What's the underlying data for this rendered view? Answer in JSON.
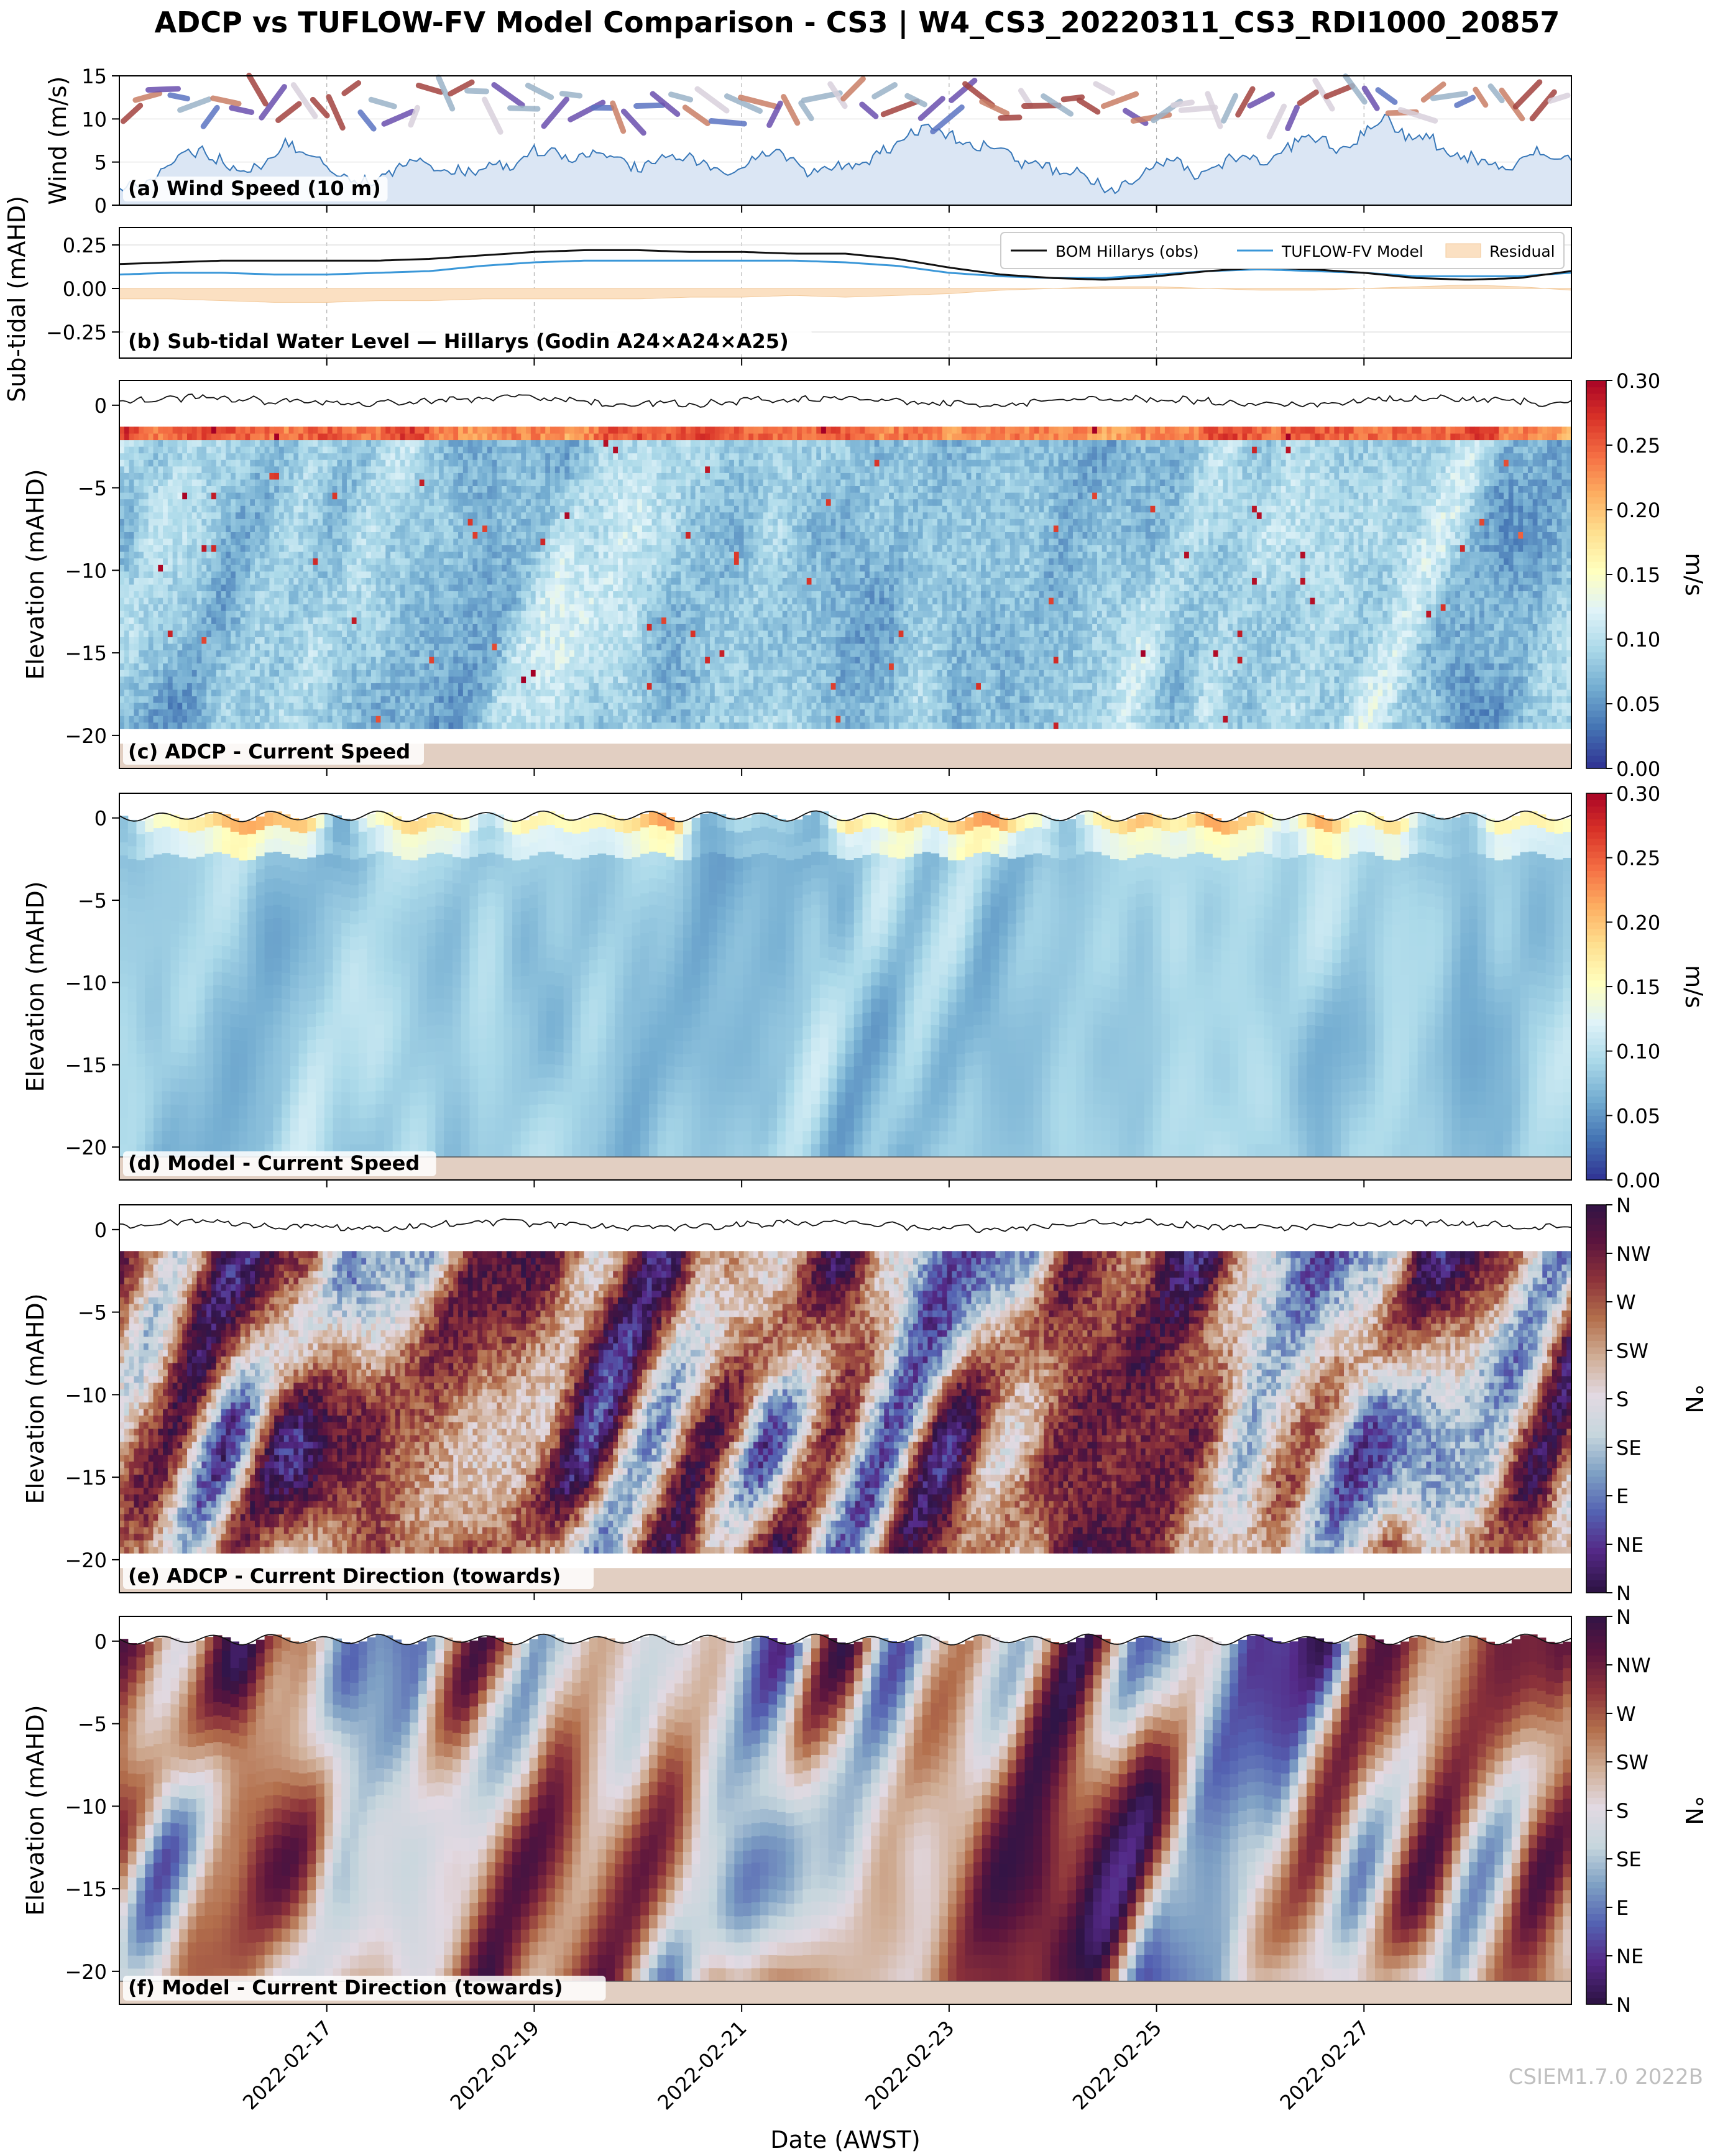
{
  "figure": {
    "title": "ADCP vs TUFLOW-FV Model Comparison - CS3 | W4_CS3_20220311_CS3_RDI1000_20857",
    "watermark": "CSIEM1.7.0 2022B",
    "xlabel": "Date (AWST)",
    "xticks": [
      "2022-02-17",
      "2022-02-19",
      "2022-02-21",
      "2022-02-23",
      "2022-02-25",
      "2022-02-27"
    ],
    "xticks_days": [
      17,
      19,
      21,
      23,
      25,
      27
    ],
    "xlim_days": [
      15.0,
      29.0
    ]
  },
  "colors": {
    "wind_line": "#3777b8",
    "wind_fill": "#dbe6f4",
    "obs_line": "#111111",
    "model_line": "#3a97d8",
    "residual_fill": "#fbe0c2",
    "seabed": "#e2cfc2",
    "wind_arrow_palette": [
      "#6b4fae",
      "#5b74c2",
      "#9bb3c8",
      "#d9d1dc",
      "#c97e66",
      "#a3433f"
    ]
  },
  "chart_data": [
    {
      "id": "a",
      "type": "area",
      "panel_label": "(a) Wind Speed (10 m)",
      "ylabel": "Wind (m/s)",
      "ylim": [
        0,
        15
      ],
      "yticks": [
        0,
        5,
        10,
        15
      ],
      "grid": true,
      "x_days": [
        15.0,
        15.2,
        15.4,
        15.6,
        15.8,
        16.0,
        16.2,
        16.4,
        16.6,
        16.8,
        17.0,
        17.2,
        17.4,
        17.6,
        17.8,
        18.0,
        18.2,
        18.4,
        18.6,
        18.8,
        19.0,
        19.2,
        19.4,
        19.6,
        19.8,
        20.0,
        20.2,
        20.4,
        20.6,
        20.8,
        21.0,
        21.2,
        21.4,
        21.6,
        21.8,
        22.0,
        22.2,
        22.4,
        22.6,
        22.8,
        23.0,
        23.2,
        23.4,
        23.6,
        23.8,
        24.0,
        24.2,
        24.4,
        24.6,
        24.8,
        25.0,
        25.2,
        25.4,
        25.6,
        25.8,
        26.0,
        26.2,
        26.4,
        26.6,
        26.8,
        27.0,
        27.2,
        27.4,
        27.6,
        27.8,
        28.0,
        28.2,
        28.4,
        28.6,
        28.8,
        29.0
      ],
      "values": [
        2.0,
        2.6,
        3.5,
        5.5,
        6.2,
        5.0,
        3.6,
        4.5,
        7.2,
        5.5,
        4.8,
        3.2,
        2.8,
        3.5,
        5.0,
        4.5,
        4.2,
        3.6,
        5.2,
        4.4,
        6.5,
        6.2,
        5.2,
        5.9,
        5.0,
        4.4,
        5.5,
        6.1,
        5.0,
        3.9,
        4.3,
        6.2,
        6.0,
        3.8,
        4.1,
        4.6,
        5.0,
        6.5,
        8.2,
        9.3,
        8.1,
        7.0,
        6.5,
        5.6,
        4.5,
        4.2,
        4.1,
        3.0,
        1.2,
        3.2,
        4.7,
        5.2,
        3.5,
        4.8,
        5.6,
        5.2,
        6.0,
        8.0,
        7.5,
        6.2,
        8.3,
        10.8,
        7.6,
        8.2,
        6.0,
        5.7,
        4.8,
        4.1,
        6.6,
        5.9,
        5.5
      ],
      "direction_glyphs": "wind arrows along top of panel"
    },
    {
      "id": "b",
      "type": "line",
      "panel_label": "(b) Sub-tidal Water Level — Hillarys (Godin A24×A24×A25)",
      "ylabel": "Sub-tidal (mAHD)",
      "ylim": [
        -0.4,
        0.35
      ],
      "yticks": [
        -0.25,
        0.0,
        0.25
      ],
      "yticklabels": [
        "−0.25",
        "0.00",
        "0.25"
      ],
      "grid": true,
      "legend_position": "top-right",
      "x_days": [
        15.0,
        15.5,
        16.0,
        16.5,
        17.0,
        17.5,
        18.0,
        18.5,
        19.0,
        19.5,
        20.0,
        20.5,
        21.0,
        21.5,
        22.0,
        22.5,
        23.0,
        23.5,
        24.0,
        24.5,
        25.0,
        25.5,
        26.0,
        26.5,
        27.0,
        27.5,
        28.0,
        28.5,
        29.0
      ],
      "series": [
        {
          "name": "BOM Hillarys (obs)",
          "values": [
            0.14,
            0.15,
            0.16,
            0.16,
            0.16,
            0.16,
            0.17,
            0.19,
            0.21,
            0.22,
            0.22,
            0.21,
            0.21,
            0.2,
            0.2,
            0.17,
            0.12,
            0.08,
            0.06,
            0.05,
            0.07,
            0.1,
            0.12,
            0.11,
            0.09,
            0.06,
            0.05,
            0.06,
            0.1
          ]
        },
        {
          "name": "TUFLOW-FV Model",
          "values": [
            0.08,
            0.09,
            0.09,
            0.08,
            0.08,
            0.09,
            0.1,
            0.13,
            0.15,
            0.16,
            0.16,
            0.16,
            0.16,
            0.16,
            0.15,
            0.13,
            0.09,
            0.07,
            0.06,
            0.06,
            0.08,
            0.1,
            0.11,
            0.1,
            0.09,
            0.07,
            0.07,
            0.07,
            0.09
          ]
        },
        {
          "name": "Residual",
          "values": [
            -0.06,
            -0.06,
            -0.07,
            -0.08,
            -0.08,
            -0.07,
            -0.07,
            -0.06,
            -0.06,
            -0.06,
            -0.06,
            -0.05,
            -0.05,
            -0.04,
            -0.05,
            -0.04,
            -0.03,
            -0.01,
            0.0,
            0.01,
            0.01,
            0.0,
            -0.01,
            -0.01,
            0.0,
            0.01,
            0.02,
            0.01,
            -0.01
          ]
        }
      ]
    },
    {
      "id": "c",
      "type": "heatmap",
      "panel_label": "(c) ADCP - Current Speed",
      "ylabel": "Elevation (mAHD)",
      "ylim": [
        -22,
        1.5
      ],
      "yticks": [
        0,
        -5,
        -10,
        -15,
        -20
      ],
      "yticklabels": [
        "0",
        "−5",
        "−10",
        "−15",
        "−20"
      ],
      "data_elevation_range": [
        -19.6,
        -1.3
      ],
      "seabed_elevation": -20.5,
      "colorbar": {
        "label": "m/s",
        "ticks": [
          "0.00",
          "0.05",
          "0.10",
          "0.15",
          "0.20",
          "0.25",
          "0.30"
        ],
        "range": [
          0,
          0.3
        ],
        "cmap": "RdYlBu_r"
      }
    },
    {
      "id": "d",
      "type": "heatmap",
      "panel_label": "(d) Model - Current Speed",
      "ylabel": "Elevation (mAHD)",
      "ylim": [
        -22,
        1.5
      ],
      "yticks": [
        0,
        -5,
        -10,
        -15,
        -20
      ],
      "yticklabels": [
        "0",
        "−5",
        "−10",
        "−15",
        "−20"
      ],
      "data_elevation_range": [
        -20.6,
        0.3
      ],
      "seabed_elevation": -20.6,
      "colorbar": {
        "label": "m/s",
        "ticks": [
          "0.00",
          "0.05",
          "0.10",
          "0.15",
          "0.20",
          "0.25",
          "0.30"
        ],
        "range": [
          0,
          0.3
        ],
        "cmap": "RdYlBu_r"
      }
    },
    {
      "id": "e",
      "type": "heatmap",
      "panel_label": "(e) ADCP - Current Direction (towards)",
      "ylabel": "Elevation (mAHD)",
      "ylim": [
        -22,
        1.5
      ],
      "yticks": [
        0,
        -5,
        -10,
        -15,
        -20
      ],
      "yticklabels": [
        "0",
        "−5",
        "−10",
        "−15",
        "−20"
      ],
      "data_elevation_range": [
        -19.6,
        -1.3
      ],
      "seabed_elevation": -20.5,
      "colorbar": {
        "label": "°N",
        "ticks": [
          "N",
          "NE",
          "E",
          "SE",
          "S",
          "SW",
          "W",
          "NW",
          "N"
        ],
        "range": [
          0,
          360
        ],
        "cmap": "twilight_shifted"
      }
    },
    {
      "id": "f",
      "type": "heatmap",
      "panel_label": "(f) Model - Current Direction (towards)",
      "ylabel": "Elevation (mAHD)",
      "ylim": [
        -22,
        1.5
      ],
      "yticks": [
        0,
        -5,
        -10,
        -15,
        -20
      ],
      "yticklabels": [
        "0",
        "−5",
        "−10",
        "−15",
        "−20"
      ],
      "data_elevation_range": [
        -20.6,
        0.3
      ],
      "seabed_elevation": -20.6,
      "colorbar": {
        "label": "°N",
        "ticks": [
          "N",
          "NE",
          "E",
          "SE",
          "S",
          "SW",
          "W",
          "NW",
          "N"
        ],
        "range": [
          0,
          360
        ],
        "cmap": "twilight_shifted"
      }
    }
  ]
}
